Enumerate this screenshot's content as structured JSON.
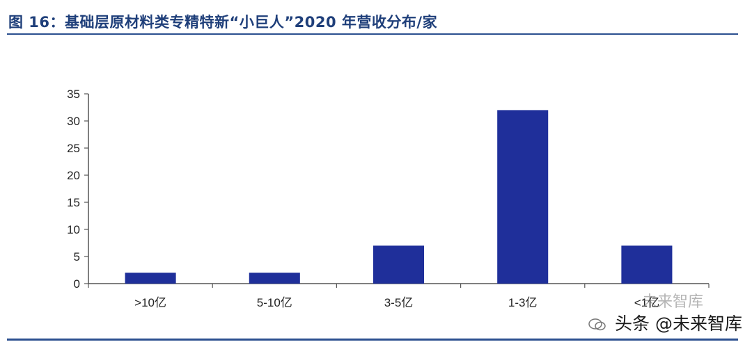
{
  "title": "图 16：基础层原材料类专精特新“小巨人”2020 年营收分布/家",
  "watermark": {
    "main": "头条 @未来智库",
    "ghost": "未来智库",
    "logo_icon": "wechat-logo-icon"
  },
  "colors": {
    "bar": "#1f2f9a",
    "axis": "#555555",
    "title": "#1f3f7a",
    "rule": "#2b4f8f"
  },
  "chart_data": {
    "type": "bar",
    "categories": [
      ">10亿",
      "5-10亿",
      "3-5亿",
      "1-3亿",
      "<1亿"
    ],
    "values": [
      2,
      2,
      7,
      32,
      7
    ],
    "ylim": [
      0,
      35
    ],
    "yticks": [
      0,
      5,
      10,
      15,
      20,
      25,
      30,
      35
    ],
    "grid": false,
    "xlabel": "",
    "ylabel": ""
  }
}
